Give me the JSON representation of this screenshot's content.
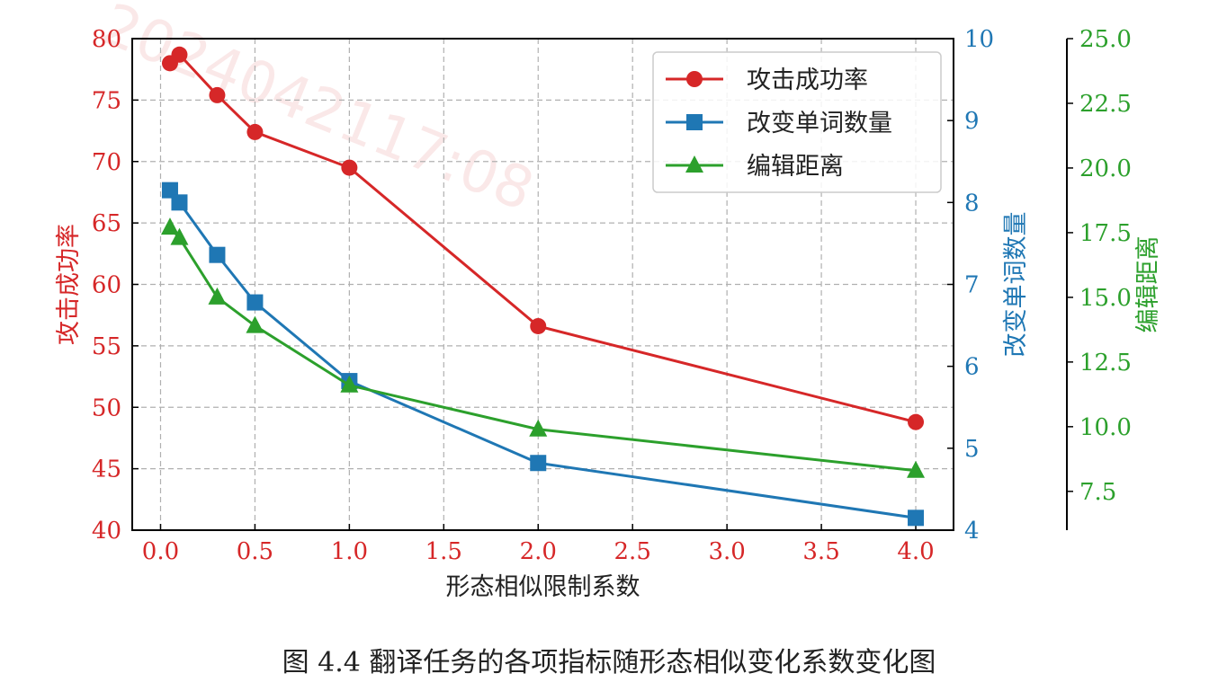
{
  "chart_data": {
    "type": "line",
    "xlabel": "形态相似限制系数",
    "x_ticks": [
      "0.0",
      "0.5",
      "1.0",
      "1.5",
      "2.0",
      "2.5",
      "3.0",
      "3.5",
      "4.0"
    ],
    "xlim": [
      -0.15,
      4.2
    ],
    "grid": true,
    "legend_position": "top-right",
    "axes": [
      {
        "id": "left",
        "label": "攻击成功率",
        "color": "#d62728",
        "ylim": [
          40,
          80
        ],
        "ticks": [
          "40",
          "45",
          "50",
          "55",
          "60",
          "65",
          "70",
          "75",
          "80"
        ]
      },
      {
        "id": "right1",
        "label": "改变单词数量",
        "color": "#1f77b4",
        "ylim": [
          4,
          10
        ],
        "ticks": [
          "4",
          "5",
          "6",
          "7",
          "8",
          "9",
          "10"
        ]
      },
      {
        "id": "right2",
        "label": "编辑距离",
        "color": "#2ca02c",
        "ylim": [
          6.0,
          25.0
        ],
        "ticks": [
          "7.5",
          "10.0",
          "12.5",
          "15.0",
          "17.5",
          "20.0",
          "22.5",
          "25.0"
        ]
      }
    ],
    "series": [
      {
        "name": "攻击成功率",
        "axis": "left",
        "color": "#d62728",
        "marker": "circle",
        "x": [
          0.05,
          0.1,
          0.3,
          0.5,
          1.0,
          2.0,
          4.0
        ],
        "y": [
          78.0,
          78.7,
          75.4,
          72.4,
          69.5,
          56.6,
          48.8
        ]
      },
      {
        "name": "改变单词数量",
        "axis": "right1",
        "color": "#1f77b4",
        "marker": "square",
        "x": [
          0.05,
          0.1,
          0.3,
          0.5,
          1.0,
          2.0,
          4.0
        ],
        "y": [
          8.15,
          8.0,
          7.36,
          6.78,
          5.82,
          4.82,
          4.15
        ]
      },
      {
        "name": "编辑距离",
        "axis": "right2",
        "color": "#2ca02c",
        "marker": "triangle",
        "x": [
          0.05,
          0.1,
          0.3,
          0.5,
          1.0,
          2.0,
          4.0
        ],
        "y": [
          17.7,
          17.3,
          15.0,
          13.9,
          11.6,
          9.9,
          8.3
        ]
      }
    ]
  },
  "caption": "图 4.4 翻译任务的各项指标随形态相似变化系数变化图",
  "watermark": "2024042117:08"
}
